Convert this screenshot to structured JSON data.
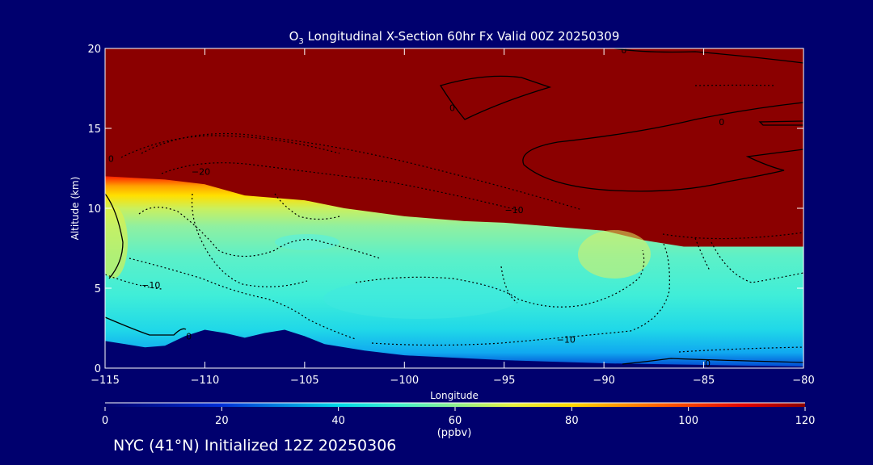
{
  "chart_data": {
    "type": "contour",
    "title_prefix": "O",
    "title_subscript": "3",
    "title_rest": " Longitudinal X-Section 60hr  Fx Valid 00Z 20250309",
    "xlabel": "Longitude",
    "ylabel": "Altitude (km)",
    "xlim": [
      -115,
      -80
    ],
    "ylim": [
      0,
      20
    ],
    "x_ticks": [
      -115,
      -110,
      -105,
      -100,
      -95,
      -90,
      -85,
      -80
    ],
    "x_tick_labels": [
      "−115",
      "−110",
      "−105",
      "−100",
      "−95",
      "−90",
      "−85",
      "−80"
    ],
    "y_ticks": [
      0,
      5,
      10,
      15,
      20
    ],
    "y_tick_labels": [
      "0",
      "5",
      "10",
      "15",
      "20"
    ],
    "tropopause_km": [
      [
        -115,
        12.0
      ],
      [
        -112,
        11.8
      ],
      [
        -110,
        11.5
      ],
      [
        -108,
        10.8
      ],
      [
        -105,
        10.5
      ],
      [
        -103,
        10.0
      ],
      [
        -100,
        9.5
      ],
      [
        -97,
        9.2
      ],
      [
        -95,
        9.1
      ],
      [
        -92,
        8.8
      ],
      [
        -90,
        8.6
      ],
      [
        -88,
        8.0
      ],
      [
        -86,
        7.6
      ],
      [
        -83,
        7.6
      ],
      [
        -80,
        7.6
      ]
    ],
    "terrain_km": [
      [
        -115,
        1.7
      ],
      [
        -114,
        1.5
      ],
      [
        -113,
        1.3
      ],
      [
        -112,
        1.4
      ],
      [
        -111,
        2.0
      ],
      [
        -110,
        2.4
      ],
      [
        -109,
        2.2
      ],
      [
        -108,
        1.9
      ],
      [
        -107,
        2.2
      ],
      [
        -106,
        2.4
      ],
      [
        -105,
        2.0
      ],
      [
        -104,
        1.5
      ],
      [
        -102,
        1.1
      ],
      [
        -100,
        0.8
      ],
      [
        -95,
        0.5
      ],
      [
        -90,
        0.3
      ],
      [
        -85,
        0.2
      ],
      [
        -80,
        0.1
      ]
    ],
    "contour_labels": [
      {
        "lon": -114.7,
        "alt": 13.1,
        "text": "0"
      },
      {
        "lon": -110.2,
        "alt": 12.3,
        "text": "−20"
      },
      {
        "lon": -94.5,
        "alt": 9.9,
        "text": "−10"
      },
      {
        "lon": -112.7,
        "alt": 5.2,
        "text": "−10"
      },
      {
        "lon": -110.8,
        "alt": 2.0,
        "text": "0"
      },
      {
        "lon": -91.9,
        "alt": 1.8,
        "text": "−10"
      },
      {
        "lon": -84.8,
        "alt": 0.3,
        "text": "0"
      },
      {
        "lon": -97.6,
        "alt": 16.3,
        "text": "0"
      },
      {
        "lon": -84.1,
        "alt": 15.4,
        "text": "0"
      },
      {
        "lon": -89.0,
        "alt": 19.9,
        "text": "0"
      }
    ],
    "colorbar": {
      "min": 0,
      "max": 120,
      "ticks": [
        0,
        20,
        40,
        60,
        80,
        100,
        120
      ],
      "tick_labels": [
        "0",
        "20",
        "40",
        "60",
        "80",
        "100",
        "120"
      ],
      "unit": "(ppbv)",
      "stops": [
        {
          "value": 0,
          "color": "#00006e"
        },
        {
          "value": 20,
          "color": "#0030d8"
        },
        {
          "value": 40,
          "color": "#00d8e8"
        },
        {
          "value": 50,
          "color": "#40f0d0"
        },
        {
          "value": 60,
          "color": "#90f090"
        },
        {
          "value": 70,
          "color": "#e8f040"
        },
        {
          "value": 80,
          "color": "#ffd800"
        },
        {
          "value": 95,
          "color": "#ff6000"
        },
        {
          "value": 110,
          "color": "#e00000"
        },
        {
          "value": 120,
          "color": "#8b0000"
        }
      ]
    }
  },
  "footer": "NYC (41°N) Initialized 12Z 20250306",
  "colors": {
    "background": "#00006e",
    "stratosphere": "#8b0000",
    "frame": "#ffffff",
    "contour": "#000000"
  }
}
